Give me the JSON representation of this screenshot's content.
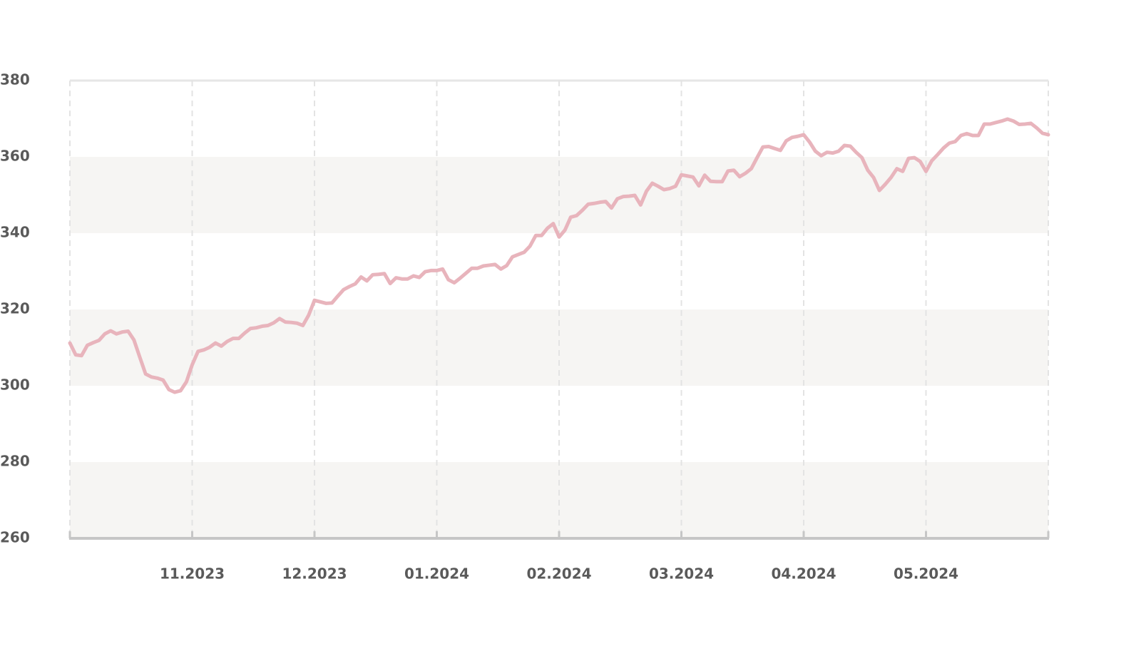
{
  "chart_data": {
    "type": "line",
    "color": "#e8b4bc",
    "grid": true,
    "values": [
      311.2,
      308.1,
      307.9,
      310.6,
      311.3,
      311.9,
      313.6,
      314.4,
      313.6,
      314.1,
      314.3,
      312,
      307.5,
      303.1,
      302.3,
      302,
      301.5,
      299,
      298.3,
      298.7,
      301,
      305.5,
      309,
      309.4,
      310.1,
      311.2,
      310.4,
      311.6,
      312.4,
      312.4,
      313.8,
      315,
      315.2,
      315.6,
      315.8,
      316.5,
      317.6,
      316.7,
      316.6,
      316.4,
      315.8,
      318.5,
      322.4,
      322,
      321.6,
      321.7,
      323.5,
      325.2,
      326,
      326.7,
      328.5,
      327.5,
      329.1,
      329.2,
      329.4,
      326.8,
      328.3,
      328,
      328,
      328.8,
      328.4,
      329.9,
      330.2,
      330.2,
      330.6,
      327.8,
      327,
      328.2,
      329.5,
      330.8,
      330.8,
      331.4,
      331.6,
      331.8,
      330.6,
      331.5,
      333.8,
      334.4,
      335,
      336.6,
      339.4,
      339.4,
      341.3,
      342.5,
      339,
      340.8,
      344.2,
      344.6,
      346,
      347.6,
      347.8,
      348.1,
      348.3,
      346.6,
      349,
      349.6,
      349.7,
      349.9,
      347.4,
      351,
      353.1,
      352.3,
      351.4,
      351.7,
      352.3,
      355.3,
      355,
      354.7,
      352.4,
      355.2,
      353.6,
      353.5,
      353.5,
      356.3,
      356.5,
      354.8,
      355.7,
      356.9,
      359.8,
      362.6,
      362.7,
      362.2,
      361.7,
      364.2,
      365.1,
      365.4,
      365.8,
      363.9,
      361.5,
      360.3,
      361.2,
      361,
      361.5,
      363,
      362.8,
      361.2,
      359.8,
      356.5,
      354.6,
      351.2,
      352.8,
      354.6,
      356.9,
      356.2,
      359.6,
      359.8,
      358.8,
      356.2,
      359,
      360.6,
      362.3,
      363.6,
      364,
      365.6,
      366.1,
      365.6,
      365.6,
      368.6,
      368.6,
      369,
      369.4,
      369.9,
      369.4,
      368.5,
      368.6,
      368.8,
      367.6,
      366.2,
      365.8
    ],
    "xlim": [
      0,
      168
    ],
    "xticks": [
      {
        "value": 21,
        "label": "11.2023"
      },
      {
        "value": 42,
        "label": "12.2023"
      },
      {
        "value": 63,
        "label": "01.2024"
      },
      {
        "value": 84,
        "label": "02.2024"
      },
      {
        "value": 105,
        "label": "03.2024"
      },
      {
        "value": 126,
        "label": "04.2024"
      },
      {
        "value": 147,
        "label": "05.2024"
      }
    ],
    "ylim": [
      260,
      380
    ],
    "yticks": [
      260,
      280,
      300,
      320,
      340,
      360,
      380
    ]
  }
}
